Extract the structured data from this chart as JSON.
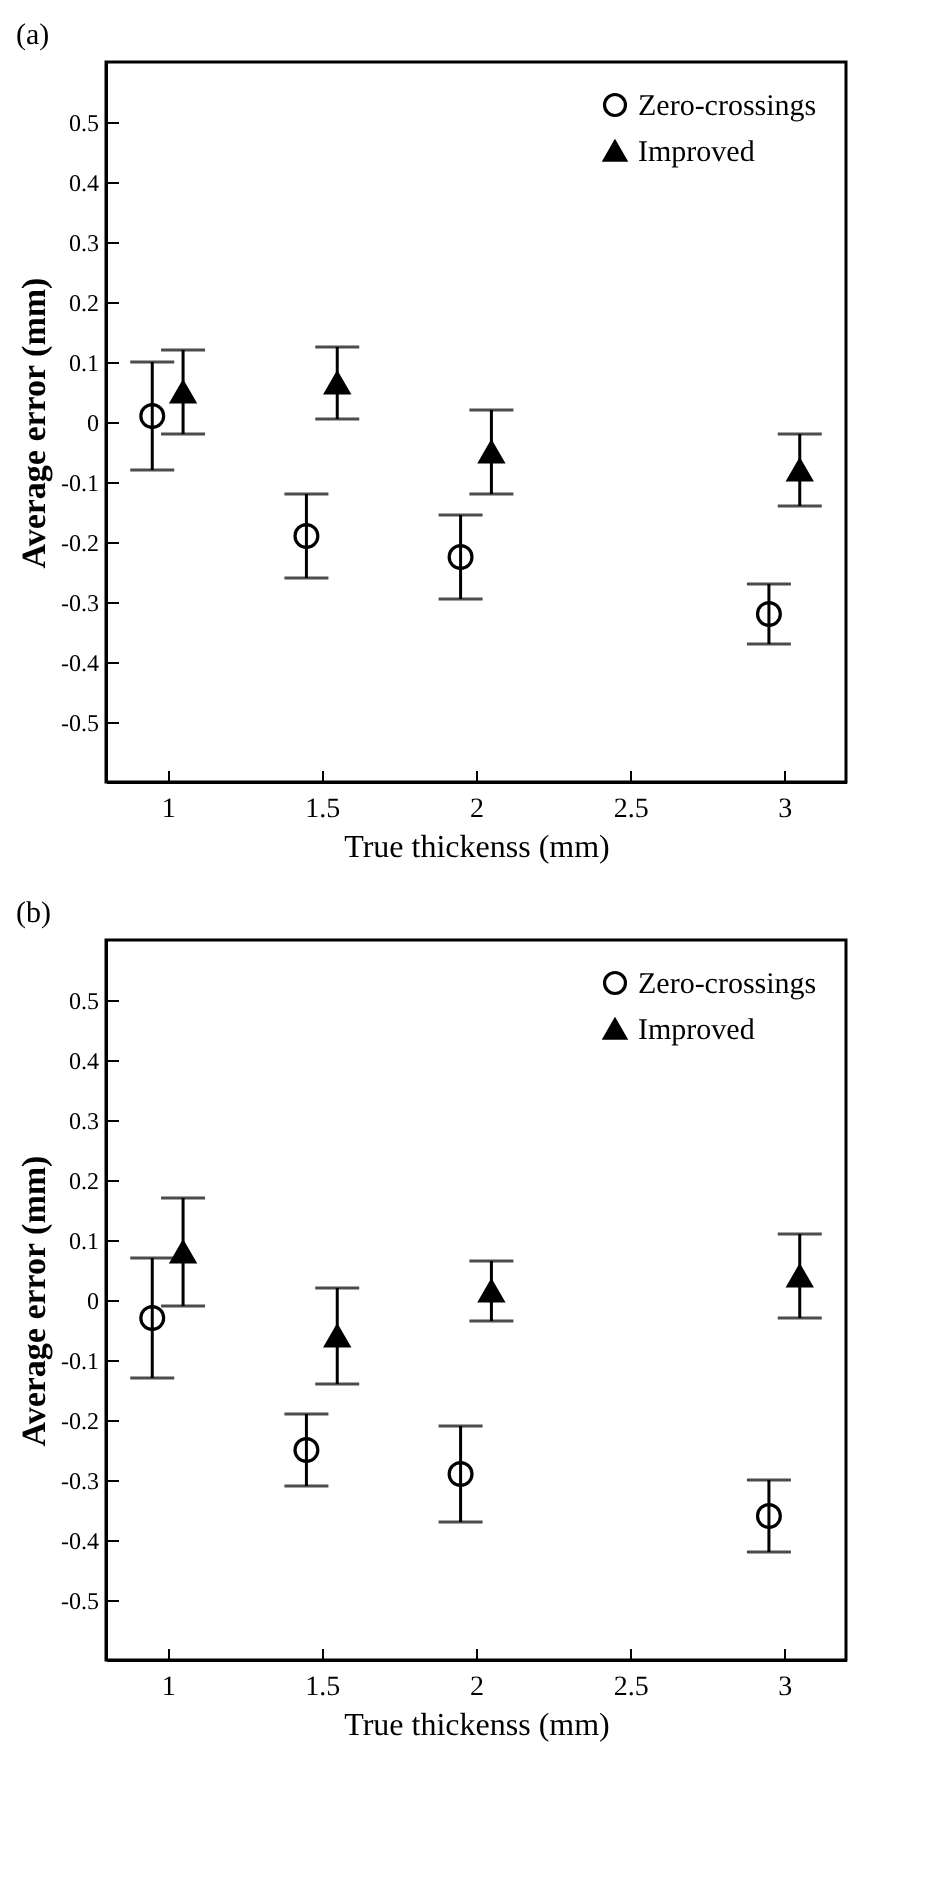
{
  "chart_data": [
    {
      "type": "scatter",
      "title": "(a)",
      "xlabel": "True thickenss (mm)",
      "ylabel": "Average error (mm)",
      "xlim": [
        0.8,
        3.2
      ],
      "ylim": [
        -0.6,
        0.6
      ],
      "xticks": [
        1,
        1.5,
        2,
        2.5,
        3
      ],
      "yticks": [
        -0.5,
        -0.4,
        -0.3,
        -0.2,
        -0.1,
        0,
        0.1,
        0.2,
        0.3,
        0.4,
        0.5
      ],
      "grid": false,
      "legend": "top right",
      "series": [
        {
          "name": "Zero-crossings",
          "color": "#000000",
          "marker": "circle",
          "x": [
            0.95,
            1.45,
            1.95,
            2.95
          ],
          "values": [
            0.01,
            -0.19,
            -0.225,
            -0.32
          ],
          "errors": [
            0.09,
            0.07,
            0.07,
            0.05
          ]
        },
        {
          "name": "Improved",
          "color": "#000000",
          "marker": "triangle",
          "x": [
            1.05,
            1.55,
            2.05,
            3.05
          ],
          "values": [
            0.05,
            0.065,
            -0.05,
            -0.08
          ],
          "errors": [
            0.07,
            0.06,
            0.07,
            0.06
          ]
        }
      ]
    },
    {
      "type": "scatter",
      "title": "(b)",
      "xlabel": "True thickenss (mm)",
      "ylabel": "Average error (mm)",
      "xlim": [
        0.8,
        3.2
      ],
      "ylim": [
        -0.6,
        0.6
      ],
      "xticks": [
        1,
        1.5,
        2,
        2.5,
        3
      ],
      "yticks": [
        -0.5,
        -0.4,
        -0.3,
        -0.2,
        -0.1,
        0,
        0.1,
        0.2,
        0.3,
        0.4,
        0.5
      ],
      "grid": false,
      "legend": "top right",
      "series": [
        {
          "name": "Zero-crossings",
          "color": "#000000",
          "marker": "circle",
          "x": [
            0.95,
            1.45,
            1.95,
            2.95
          ],
          "values": [
            -0.03,
            -0.25,
            -0.29,
            -0.36
          ],
          "errors": [
            0.1,
            0.06,
            0.08,
            0.06
          ]
        },
        {
          "name": "Improved",
          "color": "#000000",
          "marker": "triangle",
          "x": [
            1.05,
            1.55,
            2.05,
            3.05
          ],
          "values": [
            0.08,
            -0.06,
            0.015,
            0.04
          ],
          "errors": [
            0.09,
            0.08,
            0.05,
            0.07
          ]
        }
      ]
    }
  ]
}
